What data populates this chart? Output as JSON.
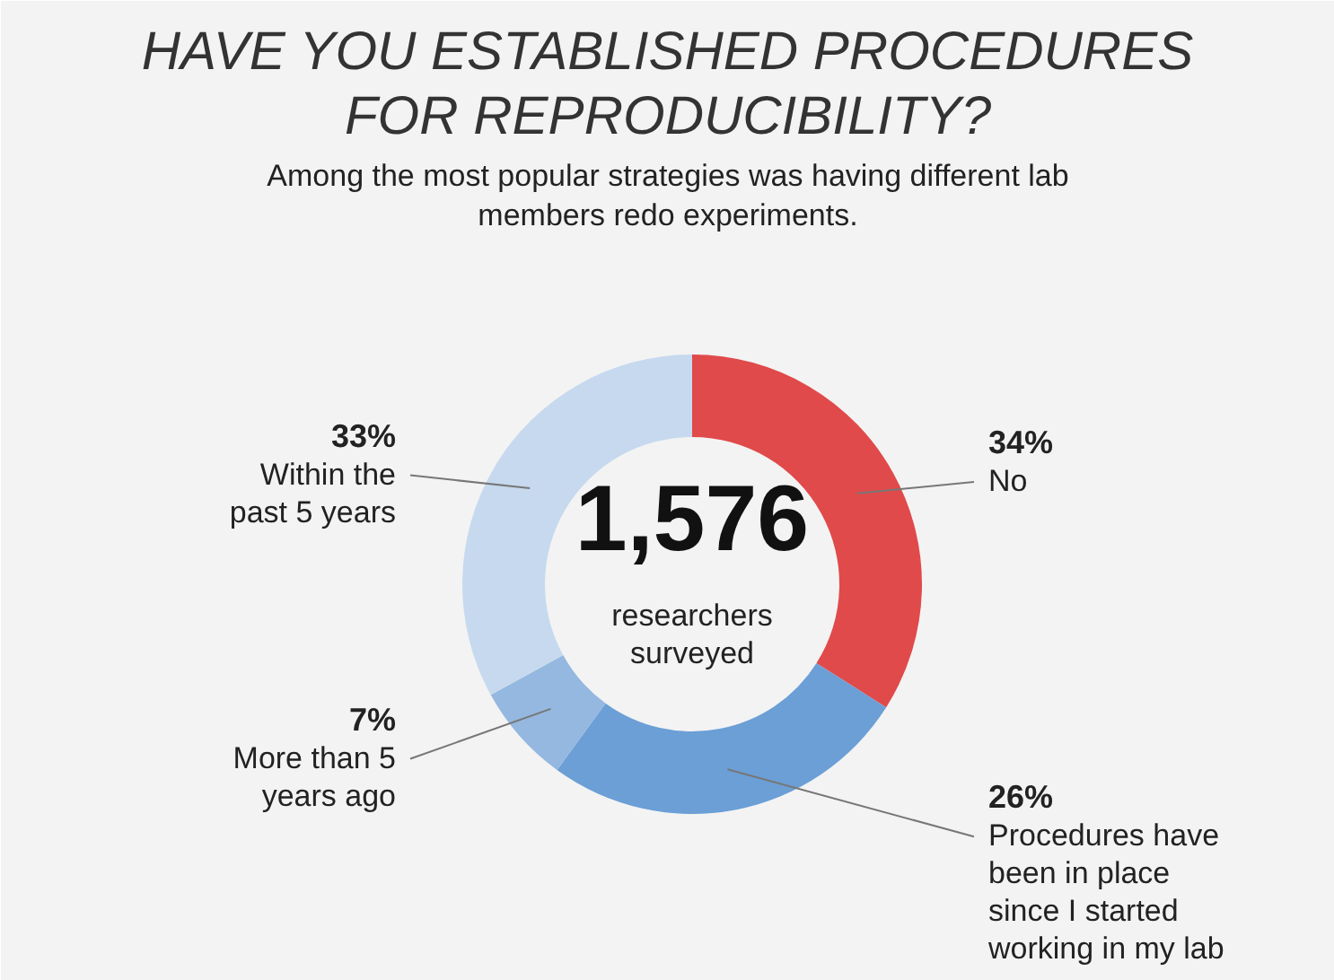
{
  "chart_data": {
    "type": "donut",
    "title": "HAVE YOU ESTABLISHED PROCEDURES FOR REPRODUCIBILITY?",
    "subtitle": "Among the most popular strategies was having different lab members redo experiments.",
    "categories": [
      "No",
      "Procedures have been in place since I started working in my lab",
      "More than 5 years ago",
      "Within the past 5 years"
    ],
    "values": [
      34,
      26,
      7,
      33
    ],
    "colors": [
      "#e04a4a",
      "#6b9fd6",
      "#94b8df",
      "#c6d9ee"
    ],
    "value_labels": [
      "34%",
      "26%",
      "7%",
      "33%"
    ],
    "annotations": [
      "1,576",
      "researchers surveyed"
    ]
  }
}
